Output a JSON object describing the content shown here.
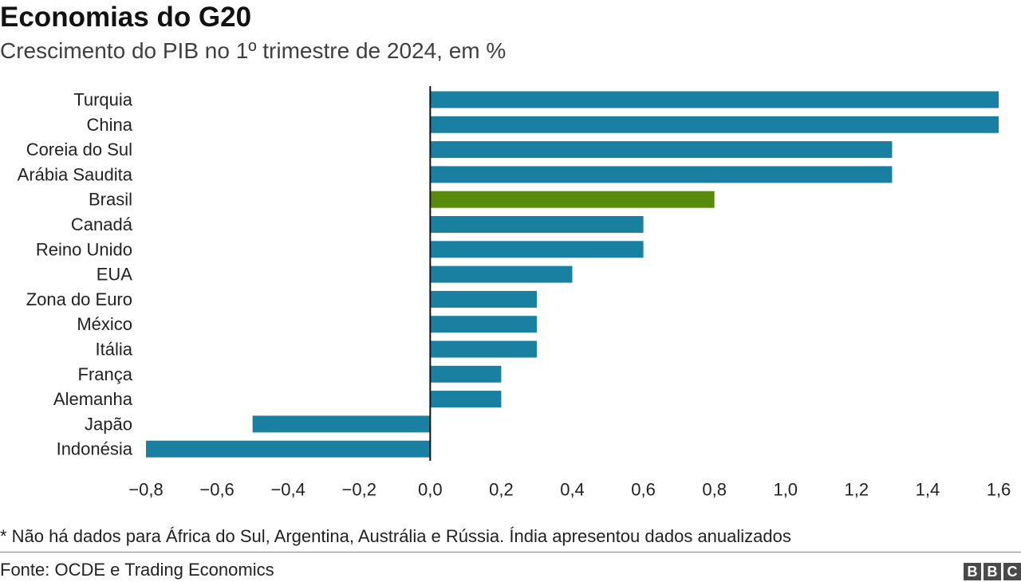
{
  "header": {
    "title": "Economias do G20",
    "subtitle": "Crescimento do PIB no 1º trimestre de 2024, em %"
  },
  "footer": {
    "note": "* Não há dados para África do Sul, Argentina, Austrália e Rússia. Índia apresentou dados anualizados",
    "source": "Fonte: OCDE e Trading Economics",
    "logo_letters": [
      "B",
      "B",
      "C"
    ]
  },
  "colors": {
    "bar": "#1a80a1",
    "highlight": "#588a0c",
    "axis": "#111111",
    "label": "#222222"
  },
  "chart_data": {
    "type": "bar",
    "orientation": "horizontal",
    "title": "Economias do G20",
    "subtitle": "Crescimento do PIB no 1º trimestre de 2024, em %",
    "categories": [
      "Turquia",
      "China",
      "Coreia do Sul",
      "Arábia Saudita",
      "Brasil",
      "Canadá",
      "Reino Unido",
      "EUA",
      "Zona do Euro",
      "México",
      "Itália",
      "França",
      "Alemanha",
      "Japão",
      "Indonésia"
    ],
    "values": [
      1.6,
      1.6,
      1.3,
      1.3,
      0.8,
      0.6,
      0.6,
      0.4,
      0.3,
      0.3,
      0.3,
      0.2,
      0.2,
      -0.5,
      -0.8
    ],
    "highlight": "Brasil",
    "xlim": [
      -0.8,
      1.6
    ],
    "xticks": [
      -0.8,
      -0.6,
      -0.4,
      -0.2,
      0.0,
      0.2,
      0.4,
      0.6,
      0.8,
      1.0,
      1.2,
      1.4,
      1.6
    ],
    "xtick_labels": [
      "−0,8",
      "−0,6",
      "−0,4",
      "−0,2",
      "0,0",
      "0,2",
      "0,4",
      "0,6",
      "0,8",
      "1,0",
      "1,2",
      "1,4",
      "1,6"
    ],
    "grid": false,
    "legend": "none"
  }
}
